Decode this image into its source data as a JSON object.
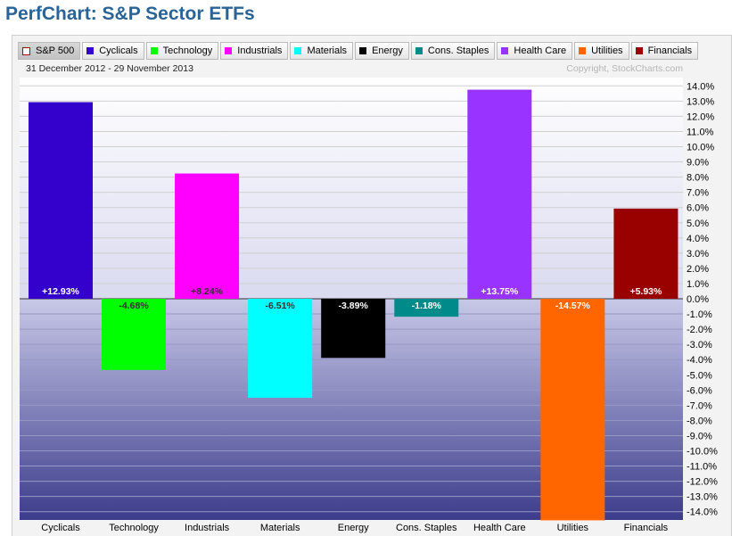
{
  "page_title": "PerfChart: S&P Sector ETFs",
  "date_range": "31 December 2012 - 29 November 2013",
  "copyright": "Copyright, StockCharts.com",
  "legend": [
    {
      "label": "S&P 500",
      "color": "#ffffff",
      "hollow": true
    },
    {
      "label": "Cyclicals",
      "color": "#3300cc"
    },
    {
      "label": "Technology",
      "color": "#00ff00"
    },
    {
      "label": "Industrials",
      "color": "#ff00ff"
    },
    {
      "label": "Materials",
      "color": "#00ffff"
    },
    {
      "label": "Energy",
      "color": "#000000"
    },
    {
      "label": "Cons. Staples",
      "color": "#008b8b"
    },
    {
      "label": "Health Care",
      "color": "#9933ff"
    },
    {
      "label": "Utilities",
      "color": "#ff6600"
    },
    {
      "label": "Financials",
      "color": "#990000"
    }
  ],
  "chart_data": {
    "type": "bar",
    "categories": [
      "Cyclicals",
      "Technology",
      "Industrials",
      "Materials",
      "Energy",
      "Cons. Staples",
      "Health Care",
      "Utilities",
      "Financials"
    ],
    "values": [
      12.93,
      -4.68,
      8.24,
      -6.51,
      -3.89,
      -1.18,
      13.75,
      -14.57,
      5.93
    ],
    "data_labels": [
      "+12.93%",
      "-4.68%",
      "+8.24%",
      "-6.51%",
      "-3.89%",
      "-1.18%",
      "+13.75%",
      "-14.57%",
      "+5.93%"
    ],
    "colors": [
      "#3300cc",
      "#00ff00",
      "#ff00ff",
      "#00ffff",
      "#000000",
      "#008b8b",
      "#9933ff",
      "#ff6600",
      "#990000"
    ],
    "label_colors": [
      "#ffffff",
      "#333333",
      "#333333",
      "#333333",
      "#ffffff",
      "#ffffff",
      "#ffffff",
      "#ffffff",
      "#ffffff"
    ],
    "ylim": [
      -14.5,
      14.5
    ],
    "ytick_values": [
      14,
      13,
      12,
      11,
      10,
      9,
      8,
      7,
      6,
      5,
      4,
      3,
      2,
      1,
      0,
      -1,
      -2,
      -3,
      -4,
      -5,
      -6,
      -7,
      -8,
      -9,
      -10,
      -11,
      -12,
      -13,
      -14
    ],
    "ytick_labels": [
      "14.0%",
      "13.0%",
      "12.0%",
      "11.0%",
      "10.0%",
      "9.0%",
      "8.0%",
      "7.0%",
      "6.0%",
      "5.0%",
      "4.0%",
      "3.0%",
      "2.0%",
      "1.0%",
      "0.0%",
      "-1.0%",
      "-2.0%",
      "-3.0%",
      "-4.0%",
      "-5.0%",
      "-6.0%",
      "-7.0%",
      "-8.0%",
      "-9.0%",
      "-10.0%",
      "-11.0%",
      "-12.0%",
      "-13.0%",
      "-14.0%"
    ],
    "grid": true,
    "xlabel": "",
    "ylabel": "",
    "title": ""
  }
}
